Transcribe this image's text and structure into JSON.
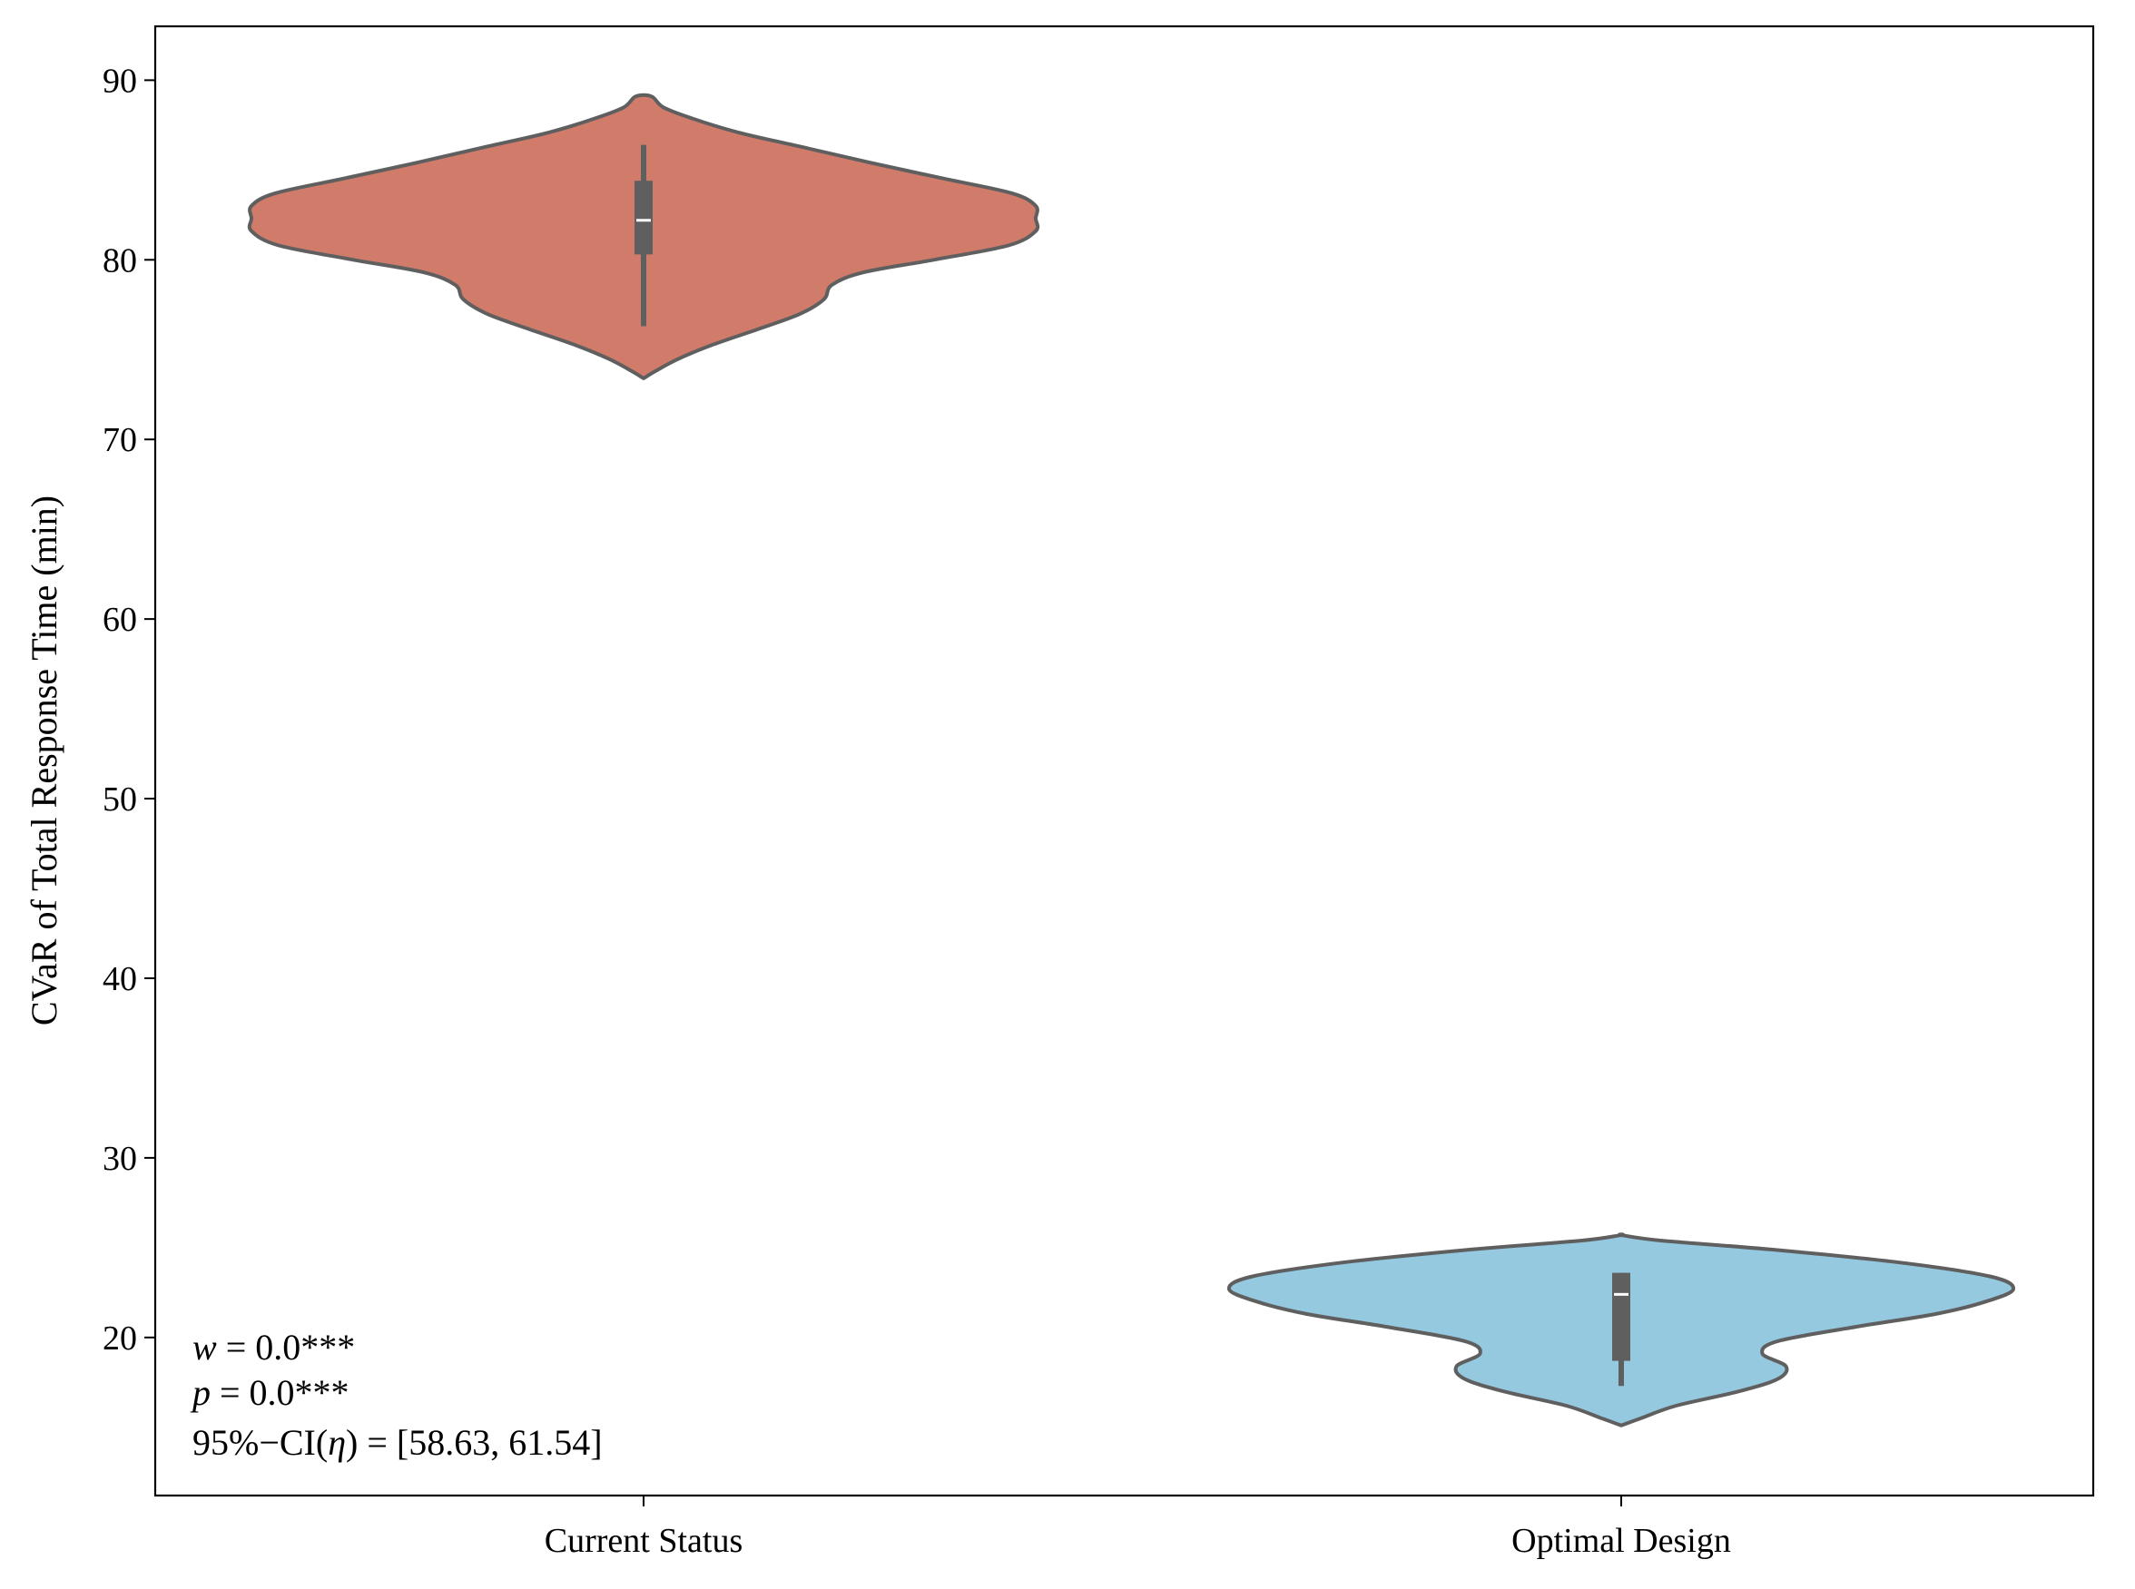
{
  "chart_data": {
    "type": "violin",
    "title": "",
    "xlabel": "",
    "ylabel": "CVaR of Total Response Time (min)",
    "ylim": [
      11.2,
      93.0
    ],
    "yticks": [
      20,
      30,
      40,
      50,
      60,
      70,
      80,
      90
    ],
    "grid": false,
    "categories": [
      "Current Status",
      "Optimal Design"
    ],
    "series": [
      {
        "category": "Current Status",
        "color": "#D17C6B",
        "median": 82.2,
        "q1": 80.3,
        "q3": 84.4,
        "whisker_low": 76.3,
        "whisker_high": 86.4,
        "density": [
          [
            73.4,
            0.0
          ],
          [
            73.8,
            0.03
          ],
          [
            74.5,
            0.09
          ],
          [
            75.3,
            0.18
          ],
          [
            76.2,
            0.3
          ],
          [
            77.0,
            0.4
          ],
          [
            77.8,
            0.46
          ],
          [
            78.6,
            0.48
          ],
          [
            79.3,
            0.56
          ],
          [
            80.0,
            0.74
          ],
          [
            80.8,
            0.93
          ],
          [
            81.6,
            1.0
          ],
          [
            82.3,
            1.0
          ],
          [
            83.0,
            1.0
          ],
          [
            83.7,
            0.94
          ],
          [
            84.5,
            0.77
          ],
          [
            85.4,
            0.58
          ],
          [
            86.3,
            0.4
          ],
          [
            87.1,
            0.24
          ],
          [
            87.9,
            0.12
          ],
          [
            88.5,
            0.05
          ],
          [
            89.1,
            0.02
          ]
        ]
      },
      {
        "category": "Optimal Design",
        "color": "#95C9E0",
        "median": 22.4,
        "q1": 18.7,
        "q3": 23.6,
        "whisker_low": 17.3,
        "whisker_high": 23.6,
        "density": [
          [
            15.1,
            0.0
          ],
          [
            15.5,
            0.05
          ],
          [
            16.2,
            0.14
          ],
          [
            17.0,
            0.3
          ],
          [
            17.7,
            0.4
          ],
          [
            18.4,
            0.42
          ],
          [
            19.1,
            0.36
          ],
          [
            19.8,
            0.4
          ],
          [
            20.6,
            0.6
          ],
          [
            21.3,
            0.8
          ],
          [
            22.0,
            0.93
          ],
          [
            22.7,
            1.0
          ],
          [
            23.4,
            0.94
          ],
          [
            24.2,
            0.7
          ],
          [
            24.9,
            0.38
          ],
          [
            25.4,
            0.1
          ],
          [
            25.7,
            0.0
          ]
        ]
      }
    ],
    "annotations": {
      "w_sym": "w",
      "w_val": " = 0.0***",
      "p_sym": "p",
      "p_val": " = 0.0***",
      "ci_pre": "95%−CI(",
      "ci_sym": "η",
      "ci_post": ") = [58.63, 61.54]"
    }
  }
}
